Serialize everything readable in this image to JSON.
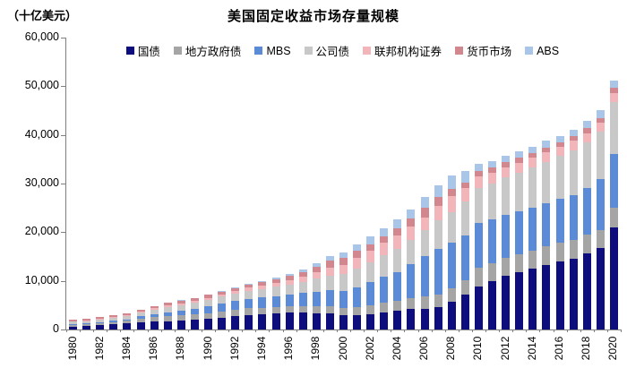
{
  "header": {
    "unit_label": "（十亿美元）",
    "title": "美国固定收益市场存量规模"
  },
  "axis": {
    "y_ticks": [
      "0",
      "10,000",
      "20,000",
      "30,000",
      "40,000",
      "50,000",
      "60,000"
    ],
    "y_tick_values": [
      0,
      10000,
      20000,
      30000,
      40000,
      50000,
      60000
    ],
    "axis_color": "#7f7f7f",
    "x_label_step": 2
  },
  "chart_data": {
    "type": "bar",
    "stacked": true,
    "title": "美国固定收益市场存量规模",
    "ylabel": "（十亿美元）",
    "xlabel": "",
    "ylim": [
      0,
      60000
    ],
    "grid": false,
    "legend_position": "top",
    "categories": [
      1980,
      1981,
      1982,
      1983,
      1984,
      1985,
      1986,
      1987,
      1988,
      1989,
      1990,
      1991,
      1992,
      1993,
      1994,
      1995,
      1996,
      1997,
      1998,
      1999,
      2000,
      2001,
      2002,
      2003,
      2004,
      2005,
      2006,
      2007,
      2008,
      2009,
      2010,
      2011,
      2012,
      2013,
      2014,
      2015,
      2016,
      2017,
      2018,
      2019,
      2020
    ],
    "series": [
      {
        "name": "国债",
        "color": "#0d0d7e",
        "values": [
          616,
          694,
          881,
          1050,
          1247,
          1437,
          1619,
          1724,
          1821,
          1945,
          2196,
          2471,
          2754,
          2989,
          3126,
          3307,
          3459,
          3457,
          3356,
          3281,
          2952,
          2968,
          3205,
          3575,
          3944,
          4166,
          4322,
          4517,
          5774,
          7261,
          8853,
          9928,
          11046,
          11854,
          12505,
          13192,
          13908,
          14469,
          15608,
          16673,
          20973
        ]
      },
      {
        "name": "地方政府债",
        "color": "#a5a5a5",
        "values": [
          399,
          436,
          474,
          512,
          569,
          859,
          920,
          1010,
          1082,
          1135,
          1184,
          1272,
          1302,
          1378,
          1342,
          1293,
          1296,
          1319,
          1403,
          1457,
          1481,
          1603,
          1763,
          1900,
          2031,
          2226,
          2403,
          2619,
          2680,
          2808,
          3772,
          3719,
          3714,
          3671,
          3652,
          3856,
          3896,
          3851,
          3815,
          3852,
          3978
        ]
      },
      {
        "name": "MBS",
        "color": "#5b8bd6",
        "values": [
          111,
          127,
          178,
          244,
          303,
          415,
          620,
          811,
          937,
          1119,
          1334,
          1570,
          1770,
          1957,
          2118,
          2275,
          2486,
          2685,
          2955,
          3334,
          3566,
          4127,
          4704,
          5309,
          5862,
          7128,
          8390,
          9372,
          9467,
          9352,
          9258,
          9075,
          8838,
          8720,
          8842,
          8894,
          9023,
          9304,
          9732,
          10332,
          11217
        ]
      },
      {
        "name": "公司债",
        "color": "#c8c8c8",
        "values": [
          458,
          471,
          500,
          532,
          573,
          719,
          959,
          1074,
          1195,
          1292,
          1350,
          1454,
          1557,
          1675,
          1757,
          1912,
          2056,
          2359,
          2708,
          3047,
          3358,
          3836,
          4132,
          4486,
          4801,
          4965,
          5345,
          5947,
          6206,
          6850,
          7122,
          7256,
          7700,
          7977,
          8282,
          8569,
          8839,
          9214,
          9406,
          9846,
          10655
        ]
      },
      {
        "name": "联邦机构证券",
        "color": "#f2b6ba",
        "values": [
          160,
          190,
          205,
          225,
          270,
          293,
          307,
          341,
          381,
          411,
          435,
          443,
          484,
          571,
          739,
          844,
          926,
          1022,
          1300,
          1620,
          1854,
          2157,
          2378,
          2626,
          2701,
          2616,
          2634,
          2946,
          3247,
          2727,
          2539,
          2327,
          2096,
          2058,
          2028,
          1995,
          1972,
          1935,
          1841,
          1739,
          1731
        ]
      },
      {
        "name": "货币市场",
        "color": "#d2878e",
        "values": [
          220,
          260,
          290,
          320,
          370,
          420,
          450,
          500,
          550,
          590,
          610,
          590,
          590,
          600,
          620,
          680,
          775,
          979,
          1173,
          1403,
          1614,
          1474,
          1374,
          1293,
          1399,
          1644,
          1958,
          1788,
          1599,
          1138,
          1058,
          969,
          952,
          1000,
          930,
          941,
          885,
          966,
          996,
          1045,
          1086
        ]
      },
      {
        "name": "ABS",
        "color": "#a9c5e8",
        "values": [
          0,
          0,
          0,
          0,
          1,
          1,
          10,
          13,
          30,
          50,
          90,
          130,
          164,
          200,
          257,
          316,
          404,
          536,
          732,
          901,
          1072,
          1281,
          1543,
          1694,
          1828,
          1955,
          2130,
          2472,
          2672,
          2429,
          1508,
          1407,
          1280,
          1286,
          1349,
          1327,
          1287,
          1393,
          1518,
          1542,
          1550
        ]
      }
    ]
  }
}
